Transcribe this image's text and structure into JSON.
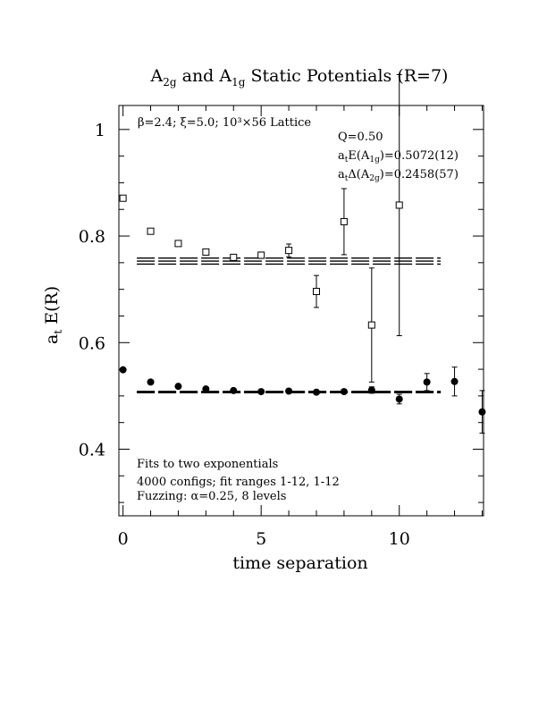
{
  "chart_data": {
    "type": "scatter",
    "title": {
      "prefix": "A",
      "sub1": "2g",
      "mid": " and A",
      "sub2": "1g",
      "suffix": " Static Potentials (R=7)"
    },
    "xlabel": "time separation",
    "ylabel": {
      "main": "a",
      "sub": "t",
      "rest": " E(R)"
    },
    "xlim": [
      -0.15,
      13.05
    ],
    "ylim": [
      0.275,
      1.045
    ],
    "x_ticks": [
      0,
      5,
      10
    ],
    "y_ticks": [
      0.4,
      0.6,
      0.8,
      1
    ],
    "x_tick_labels": [
      "0",
      "5",
      "10"
    ],
    "y_tick_labels": [
      "0.4",
      "0.6",
      "0.8",
      "1"
    ],
    "annotations": {
      "lattice": "β=2.4; ξ=5.0; 10³×56 Lattice",
      "q": "Q=0.50",
      "e_a1g": {
        "pre": "a",
        "s1": "t",
        "mid": "E(A",
        "s2": "1g",
        "post": ")=0.5072(12)"
      },
      "d_a2g": {
        "pre": "a",
        "s1": "t",
        "mid": "Δ(A",
        "s2": "2g",
        "post": ")=0.2458(57)"
      },
      "fits": "Fits to two exponentials",
      "configs": "4000 configs; fit ranges 1-12, 1-12",
      "fuzzing": "Fuzzing: α=0.25, 8 levels"
    },
    "series": [
      {
        "marker": "open-square",
        "points": [
          {
            "x": 0,
            "y": 0.871,
            "err": 0.004
          },
          {
            "x": 1,
            "y": 0.809,
            "err": 0.003
          },
          {
            "x": 2,
            "y": 0.786,
            "err": 0.003
          },
          {
            "x": 3,
            "y": 0.77,
            "err": 0.004
          },
          {
            "x": 4,
            "y": 0.76,
            "err": 0.004
          },
          {
            "x": 5,
            "y": 0.764,
            "err": 0.006
          },
          {
            "x": 6,
            "y": 0.773,
            "err": 0.012
          },
          {
            "x": 7,
            "y": 0.696,
            "err": 0.03
          },
          {
            "x": 8,
            "y": 0.827,
            "err": 0.062
          },
          {
            "x": 9,
            "y": 0.633,
            "err": 0.107
          },
          {
            "x": 10,
            "y": 0.858,
            "err": 0.245
          }
        ],
        "fit": {
          "xrange": [
            0.5,
            11.5
          ],
          "center": 0.753,
          "band": 0.0057
        }
      },
      {
        "marker": "filled-circle",
        "points": [
          {
            "x": 0,
            "y": 0.549,
            "err": 0.002
          },
          {
            "x": 1,
            "y": 0.526,
            "err": 0.002
          },
          {
            "x": 2,
            "y": 0.518,
            "err": 0.002
          },
          {
            "x": 3,
            "y": 0.513,
            "err": 0.002
          },
          {
            "x": 4,
            "y": 0.51,
            "err": 0.002
          },
          {
            "x": 5,
            "y": 0.508,
            "err": 0.002
          },
          {
            "x": 6,
            "y": 0.509,
            "err": 0.003
          },
          {
            "x": 7,
            "y": 0.507,
            "err": 0.003
          },
          {
            "x": 8,
            "y": 0.508,
            "err": 0.004
          },
          {
            "x": 9,
            "y": 0.511,
            "err": 0.006
          },
          {
            "x": 10,
            "y": 0.494,
            "err": 0.009
          },
          {
            "x": 11,
            "y": 0.526,
            "err": 0.016
          },
          {
            "x": 12,
            "y": 0.527,
            "err": 0.027
          },
          {
            "x": 13,
            "y": 0.47,
            "err": 0.04
          }
        ],
        "fit": {
          "xrange": [
            0.5,
            11.5
          ],
          "center": 0.5072,
          "band": 0.0012
        }
      }
    ]
  }
}
